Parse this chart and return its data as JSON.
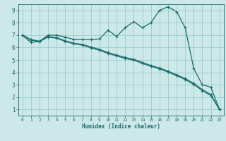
{
  "xlabel": "Humidex (Indice chaleur)",
  "bg_color": "#cce8e8",
  "grid_color": "#99cccc",
  "line_color": "#1a6b6b",
  "xlim": [
    -0.5,
    23.5
  ],
  "ylim": [
    0.5,
    9.5
  ],
  "xticks": [
    0,
    1,
    2,
    3,
    4,
    5,
    6,
    7,
    8,
    9,
    10,
    11,
    12,
    13,
    14,
    15,
    16,
    17,
    18,
    19,
    20,
    21,
    22,
    23
  ],
  "yticks": [
    1,
    2,
    3,
    4,
    5,
    6,
    7,
    8,
    9
  ],
  "line1_x": [
    0,
    1,
    2,
    3,
    4,
    5,
    6,
    7,
    8,
    9,
    10,
    11,
    12,
    13,
    14,
    15,
    16,
    17,
    18,
    19,
    20,
    21,
    22,
    23
  ],
  "line1_y": [
    7.0,
    6.4,
    6.5,
    7.0,
    7.0,
    6.85,
    6.65,
    6.65,
    6.65,
    6.7,
    7.4,
    6.9,
    7.6,
    8.1,
    7.6,
    8.0,
    9.0,
    9.3,
    8.9,
    7.6,
    4.3,
    3.0,
    2.8,
    1.0
  ],
  "line2_x": [
    0,
    1,
    2,
    3,
    4,
    5,
    6,
    7,
    8,
    9,
    10,
    11,
    12,
    13,
    14,
    15,
    16,
    17,
    18,
    19,
    20,
    21,
    22,
    23
  ],
  "line2_y": [
    7.0,
    6.65,
    6.52,
    6.9,
    6.8,
    6.55,
    6.35,
    6.25,
    6.05,
    5.85,
    5.6,
    5.4,
    5.2,
    5.05,
    4.8,
    4.55,
    4.35,
    4.1,
    3.8,
    3.5,
    3.1,
    2.6,
    2.2,
    1.0
  ],
  "line3_x": [
    0,
    1,
    2,
    3,
    4,
    5,
    6,
    7,
    8,
    9,
    10,
    11,
    12,
    13,
    14,
    15,
    16,
    17,
    18,
    19,
    20,
    21,
    22,
    23
  ],
  "line3_y": [
    7.0,
    6.6,
    6.48,
    6.85,
    6.75,
    6.5,
    6.3,
    6.2,
    5.98,
    5.78,
    5.52,
    5.32,
    5.12,
    4.98,
    4.72,
    4.48,
    4.28,
    4.02,
    3.72,
    3.42,
    3.02,
    2.52,
    2.12,
    1.0
  ]
}
